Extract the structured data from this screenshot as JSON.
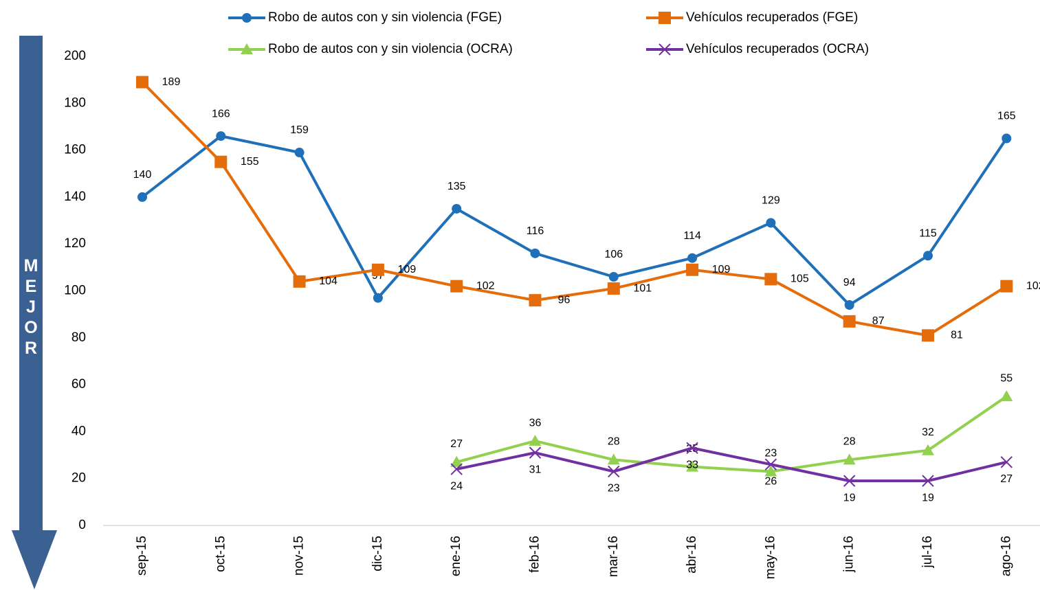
{
  "chart_data": {
    "type": "line",
    "annotation": "MEJOR",
    "categories": [
      "sep-15",
      "oct-15",
      "nov-15",
      "dic-15",
      "ene-16",
      "feb-16",
      "mar-16",
      "abr-16",
      "may-16",
      "jun-16",
      "jul-16",
      "ago-16"
    ],
    "series": [
      {
        "name": "Robo de autos con y sin violencia (FGE)",
        "color": "#1f70b8",
        "marker": "circle",
        "values": [
          140,
          166,
          159,
          97,
          135,
          116,
          106,
          114,
          129,
          94,
          115,
          165
        ]
      },
      {
        "name": "Vehículos recuperados (FGE)",
        "color": "#e46c0a",
        "marker": "square",
        "values": [
          189,
          155,
          104,
          109,
          102,
          96,
          101,
          109,
          105,
          87,
          81,
          102
        ]
      },
      {
        "name": "Robo de autos con y sin violencia (OCRA)",
        "color": "#92d050",
        "marker": "triangle",
        "values": [
          null,
          null,
          null,
          null,
          27,
          36,
          28,
          25,
          23,
          28,
          32,
          55
        ]
      },
      {
        "name": "Vehículos recuperados (OCRA)",
        "color": "#7030a0",
        "marker": "x",
        "values": [
          null,
          null,
          null,
          null,
          24,
          31,
          23,
          33,
          26,
          19,
          19,
          27
        ]
      }
    ],
    "ylim": [
      0,
      200
    ],
    "yticks": [
      0,
      20,
      40,
      60,
      80,
      100,
      120,
      140,
      160,
      180,
      200
    ],
    "legend": "top",
    "grid": false
  }
}
